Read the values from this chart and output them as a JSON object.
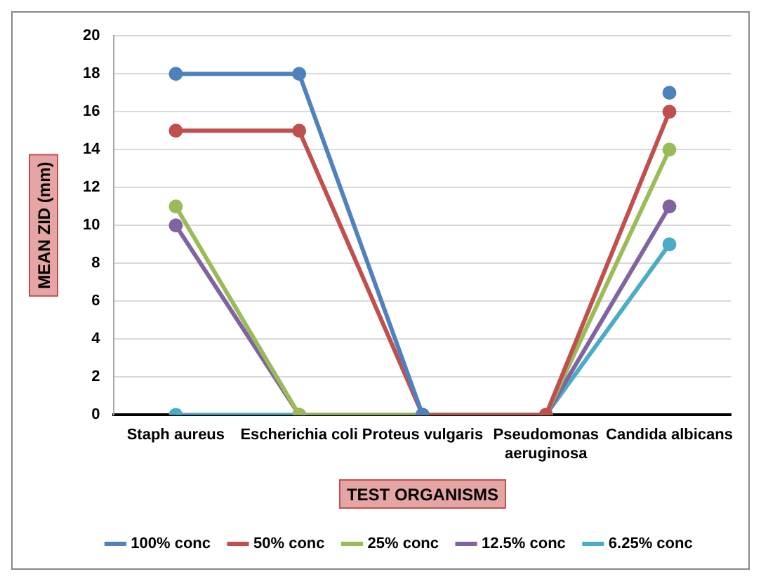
{
  "chart_data": {
    "type": "line",
    "xlabel": "TEST ORGANISMS",
    "ylabel": "MEAN ZID (mm)",
    "categories": [
      "Staph aureus",
      "Escherichia coli",
      "Proteus vulgaris",
      "Pseudomonas aeruginosa",
      "Candida albicans"
    ],
    "series": [
      {
        "name": "100% conc",
        "color": "#4f81bd",
        "values": [
          18,
          18,
          0,
          null,
          17
        ]
      },
      {
        "name": "50% conc",
        "color": "#c0504d",
        "values": [
          15,
          15,
          0,
          0,
          16
        ]
      },
      {
        "name": "25% conc",
        "color": "#9bbb59",
        "values": [
          11,
          0,
          0,
          0,
          14
        ]
      },
      {
        "name": "12.5% conc",
        "color": "#8064a2",
        "values": [
          10,
          0,
          0,
          0,
          11
        ]
      },
      {
        "name": "6.25% conc",
        "color": "#4bacc6",
        "values": [
          0,
          0,
          0,
          0,
          9
        ]
      }
    ],
    "ylim": [
      0,
      20
    ],
    "yticks": [
      0,
      2,
      4,
      6,
      8,
      10,
      12,
      14,
      16,
      18,
      20
    ],
    "grid": "y",
    "legend": "bottom",
    "marker": "circle",
    "line_style": "solid"
  }
}
